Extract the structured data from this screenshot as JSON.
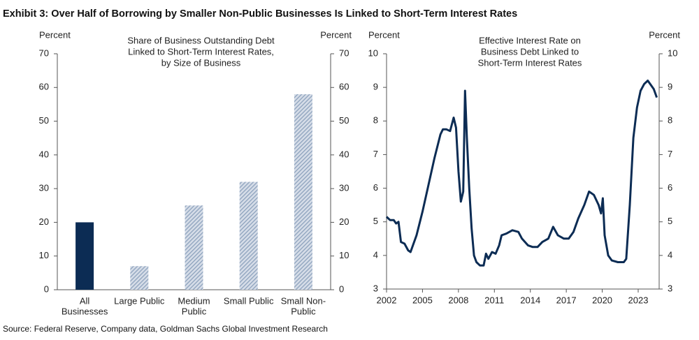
{
  "header": "Exhibit 3: Over Half of Borrowing by Smaller Non-Public Businesses Is Linked to Short-Term Interest Rates",
  "source": "Source: Federal Reserve, Company data, Goldman Sachs Global Investment Research",
  "chart_data": [
    {
      "type": "bar",
      "title": [
        "Share of Business Outstanding Debt",
        "Linked to Short-Term Interest Rates,",
        "by Size of Business"
      ],
      "ylabel": "Percent",
      "y2label": "Percent",
      "categories": [
        [
          "All",
          "Businesses"
        ],
        [
          "Large Public"
        ],
        [
          "Medium",
          "Public"
        ],
        [
          "Small Public"
        ],
        [
          "Small Non-",
          "Public"
        ]
      ],
      "values": [
        20,
        7,
        25,
        32,
        58
      ],
      "colors": [
        "#0c2c54",
        "#8da2bd",
        "#8da2bd",
        "#8da2bd",
        "#8da2bd"
      ],
      "hatch": [
        false,
        true,
        true,
        true,
        true
      ],
      "ylim": [
        0,
        70
      ],
      "yticks": [
        0,
        10,
        20,
        30,
        40,
        50,
        60,
        70
      ],
      "y2lim": [
        0,
        70
      ],
      "y2ticks": [
        0,
        10,
        20,
        30,
        40,
        50,
        60,
        70
      ]
    },
    {
      "type": "line",
      "title": [
        "Effective Interest Rate on",
        "Business Debt Linked to",
        "Short-Term Interest Rates"
      ],
      "ylabel": "Percent",
      "y2label": "Percent",
      "color": "#0c2c54",
      "x": [
        2002.0,
        2002.3,
        2002.6,
        2002.8,
        2003.0,
        2003.2,
        2003.5,
        2003.8,
        2004.0,
        2004.5,
        2005.0,
        2005.5,
        2006.0,
        2006.5,
        2006.7,
        2007.0,
        2007.3,
        2007.6,
        2007.8,
        2008.0,
        2008.2,
        2008.4,
        2008.55,
        2008.7,
        2008.9,
        2009.1,
        2009.3,
        2009.5,
        2009.8,
        2010.1,
        2010.3,
        2010.5,
        2010.8,
        2011.1,
        2011.4,
        2011.6,
        2012.0,
        2012.5,
        2013.0,
        2013.3,
        2013.8,
        2014.2,
        2014.6,
        2015.0,
        2015.5,
        2015.9,
        2016.3,
        2016.8,
        2017.2,
        2017.6,
        2018.0,
        2018.5,
        2018.9,
        2019.3,
        2019.7,
        2019.9,
        2020.05,
        2020.2,
        2020.5,
        2020.8,
        2021.3,
        2021.8,
        2022.0,
        2022.3,
        2022.6,
        2022.9,
        2023.2,
        2023.5,
        2023.8,
        2024.0,
        2024.3,
        2024.55
      ],
      "values": [
        5.15,
        5.05,
        5.05,
        4.95,
        5.0,
        4.4,
        4.35,
        4.15,
        4.1,
        4.6,
        5.3,
        6.1,
        6.9,
        7.6,
        7.75,
        7.75,
        7.7,
        8.1,
        7.8,
        6.5,
        5.6,
        5.9,
        8.9,
        7.5,
        6.0,
        4.8,
        4.0,
        3.8,
        3.7,
        3.7,
        4.05,
        3.9,
        4.1,
        4.05,
        4.3,
        4.6,
        4.65,
        4.75,
        4.7,
        4.5,
        4.3,
        4.25,
        4.25,
        4.4,
        4.5,
        4.85,
        4.6,
        4.5,
        4.5,
        4.7,
        5.1,
        5.5,
        5.9,
        5.8,
        5.5,
        5.25,
        5.7,
        4.6,
        4.0,
        3.85,
        3.8,
        3.8,
        3.9,
        5.5,
        7.5,
        8.4,
        8.9,
        9.1,
        9.2,
        9.1,
        8.95,
        8.7
      ],
      "xlim": [
        2002,
        2024.75
      ],
      "xticks": [
        2002,
        2005,
        2008,
        2011,
        2014,
        2017,
        2020,
        2023
      ],
      "ylim": [
        3,
        10
      ],
      "yticks": [
        3,
        4,
        5,
        6,
        7,
        8,
        9,
        10
      ],
      "y2lim": [
        3,
        10
      ],
      "y2ticks": [
        3,
        4,
        5,
        6,
        7,
        8,
        9,
        10
      ]
    }
  ]
}
